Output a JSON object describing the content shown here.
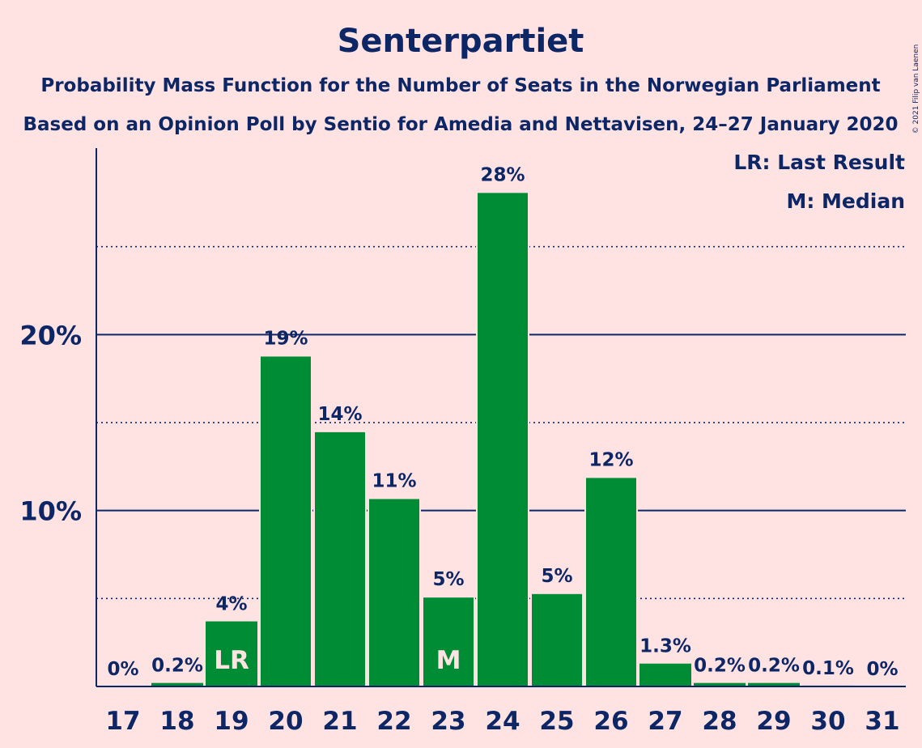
{
  "header": {
    "title": "Senterpartiet",
    "subtitle1": "Probability Mass Function for the Number of Seats in the Norwegian Parliament",
    "subtitle2": "Based on an Opinion Poll by Sentio for Amedia and Nettavisen, 24–27 January 2020"
  },
  "legend": {
    "lr": "LR: Last Result",
    "median": "M: Median"
  },
  "copyright": "© 2021 Filip van Laenen",
  "colors": {
    "background": "#ffe3e3",
    "bar": "#008c35",
    "text": "#0d2666",
    "grid": "#0d2666"
  },
  "chart_data": {
    "type": "bar",
    "categories": [
      "17",
      "18",
      "19",
      "20",
      "21",
      "22",
      "23",
      "24",
      "25",
      "26",
      "27",
      "28",
      "29",
      "30",
      "31"
    ],
    "values": [
      0,
      0.2,
      3.7,
      18.8,
      14.5,
      10.7,
      5.1,
      28.1,
      5.3,
      11.9,
      1.3,
      0.2,
      0.2,
      0.05,
      0
    ],
    "labels": [
      "0%",
      "0.2%",
      "4%",
      "19%",
      "14%",
      "11%",
      "5%",
      "28%",
      "5%",
      "12%",
      "1.3%",
      "0.2%",
      "0.2%",
      "0.1%",
      "0%"
    ],
    "yticks": [
      {
        "value": 10,
        "label": "10%"
      },
      {
        "value": 20,
        "label": "20%"
      }
    ],
    "minor_gridlines": [
      5,
      15,
      25
    ],
    "ylim": [
      0,
      30.6
    ],
    "markers": [
      {
        "category": "19",
        "text": "LR"
      },
      {
        "category": "23",
        "text": "M"
      }
    ],
    "xlabel": "",
    "ylabel": "",
    "grid": true,
    "legend_position": "top-right"
  }
}
